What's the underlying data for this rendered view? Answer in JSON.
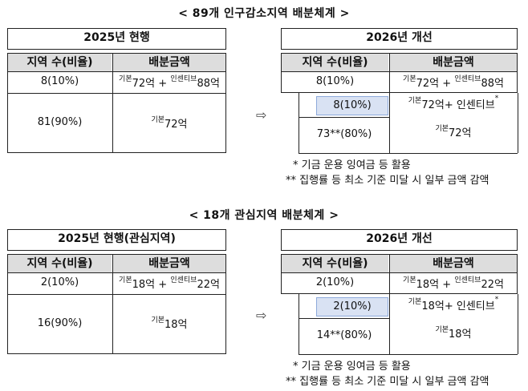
{
  "sections": [
    {
      "title": "< 89개 인구감소지역 배분체계 >",
      "left": {
        "header": "2025년 현행",
        "col_region": "지역 수(비율)",
        "col_amount": "배분금액",
        "row1_region": "8(10%)",
        "row1_base_label": "기본",
        "row1_base_value": "72억",
        "row1_plus": "+",
        "row1_inc_label": "인센티브",
        "row1_inc_value": "88억",
        "row2_region": "81(90%)",
        "row2_base_label": "기본",
        "row2_base_value": "72억"
      },
      "arrow": "⇨",
      "right": {
        "header": "2026년 개선",
        "col_region": "지역 수(비율)",
        "col_amount": "배분금액",
        "row1_region": "8(10%)",
        "row1_base_label": "기본",
        "row1_base_value": "72억",
        "row1_plus": "+",
        "row1_inc_label": "인센티브",
        "row1_inc_value": "88억",
        "row2_region": "8(10%)",
        "row2_base_label": "기본",
        "row2_base_value": "72억+ 인센티브",
        "row2_star": "*",
        "row3_region": "73**(80%)",
        "row3_base_label": "기본",
        "row3_base_value": "72억"
      },
      "note1": "* 기금 운용 잉여금 등 활용",
      "note2": "** 집행률 등 최소 기준 미달 시 일부 금액 감액"
    },
    {
      "title": "< 18개 관심지역 배분체계 >",
      "left": {
        "header": "2025년 현행(관심지역)",
        "col_region": "지역 수(비율)",
        "col_amount": "배분금액",
        "row1_region": "2(10%)",
        "row1_base_label": "기본",
        "row1_base_value": "18억",
        "row1_plus": "+",
        "row1_inc_label": "인센티브",
        "row1_inc_value": "22억",
        "row2_region": "16(90%)",
        "row2_base_label": "기본",
        "row2_base_value": "18억"
      },
      "arrow": "⇨",
      "right": {
        "header": "2026년 개선",
        "col_region": "지역 수(비율)",
        "col_amount": "배분금액",
        "row1_region": "2(10%)",
        "row1_base_label": "기본",
        "row1_base_value": "18억",
        "row1_plus": "+",
        "row1_inc_label": "인센티브",
        "row1_inc_value": "22억",
        "row2_region": "2(10%)",
        "row2_base_label": "기본",
        "row2_base_value": "18억+ 인센티브",
        "row2_star": "*",
        "row3_region": "14**(80%)",
        "row3_base_label": "기본",
        "row3_base_value": "18억"
      },
      "note1": "* 기금 운용 잉여금 등 활용",
      "note2": "** 집행률 등 최소 기준 미달 시 일부 금액 감액"
    }
  ]
}
